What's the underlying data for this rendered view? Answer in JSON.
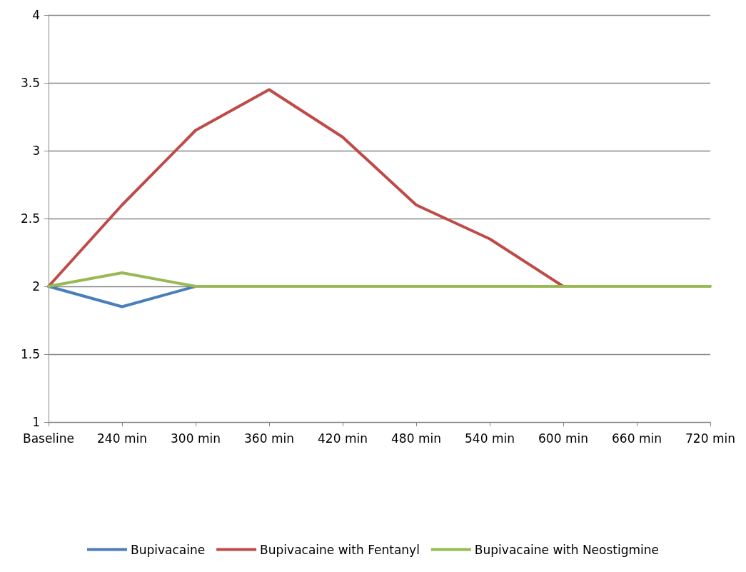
{
  "chart_data": {
    "type": "line",
    "categories": [
      "Baseline",
      "240 min",
      "300 min",
      "360 min",
      "420 min",
      "480 min",
      "540 min",
      "600 min",
      "660 min",
      "720 min"
    ],
    "series": [
      {
        "name": "Bupivacaine",
        "color": "#4a7ebb",
        "values": [
          2,
          1.85,
          2,
          null,
          null,
          null,
          null,
          null,
          null,
          null
        ]
      },
      {
        "name": "Bupivacaine with Fentanyl",
        "color": "#be4b48",
        "values": [
          2,
          2.6,
          3.15,
          3.45,
          3.1,
          2.6,
          2.35,
          2,
          null,
          null
        ]
      },
      {
        "name": "Bupivacaine with Neostigmine",
        "color": "#98b954",
        "values": [
          2,
          2.1,
          2,
          2,
          2,
          2,
          2,
          2,
          2,
          2
        ]
      }
    ],
    "ylim": [
      1,
      4
    ],
    "yticks": [
      1,
      1.5,
      2,
      2.5,
      3,
      3.5,
      4
    ],
    "grid": "y",
    "legend": "bottom",
    "marker": "none",
    "line_style": "solid"
  }
}
